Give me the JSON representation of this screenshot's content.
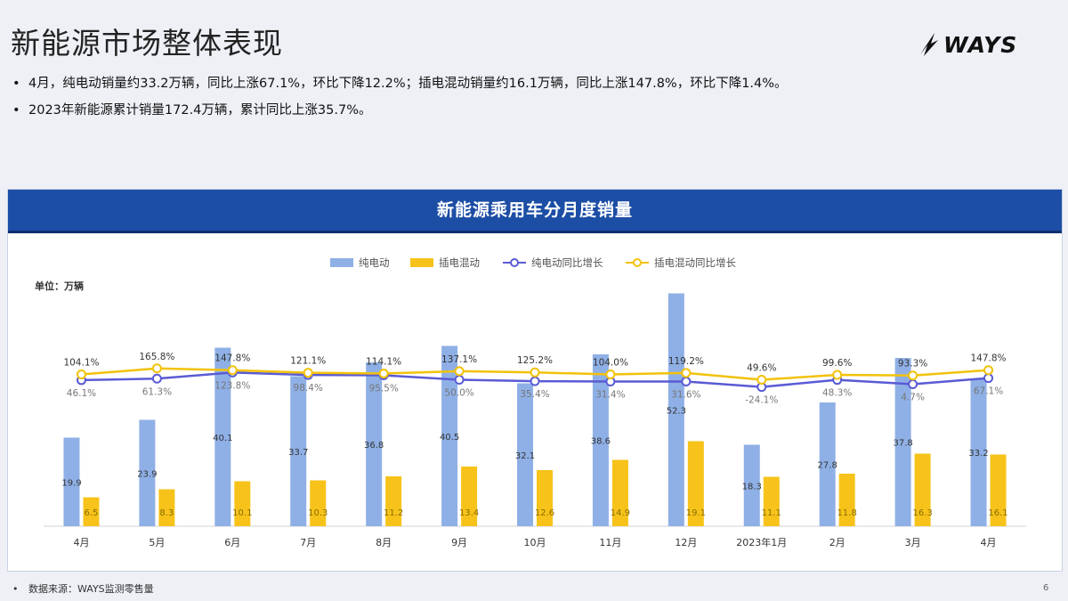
{
  "page": {
    "title": "新能源市场整体表现",
    "logo_text": "WAYS",
    "bullets": [
      "4月，纯电动销量约33.2万辆，同比上涨67.1%，环比下降12.2%；插电混动销量约16.1万辆，同比上涨147.8%，环比下降1.4%。",
      "2023年新能源累计销量172.4万辆，累计同比上涨35.7%。"
    ],
    "footer": "数据来源：WAYS监测零售量",
    "page_number": "6"
  },
  "colors": {
    "header_bg": "#1c4ea5",
    "bev_bar": "#8fb0e6",
    "phev_bar": "#f7c31a",
    "bev_line": "#5a5bd4",
    "phev_line": "#f2c20a"
  },
  "chart_data": {
    "type": "bar",
    "title": "新能源乘用车分月度销量",
    "unit_label": "单位：万辆",
    "legend_position": "top-center",
    "categories": [
      "4月",
      "5月",
      "6月",
      "7月",
      "8月",
      "9月",
      "10月",
      "11月",
      "12月",
      "2023年1月",
      "2月",
      "3月",
      "4月"
    ],
    "series": [
      {
        "name": "纯电动",
        "kind": "bar",
        "values": [
          19.9,
          23.9,
          40.1,
          33.7,
          36.8,
          40.5,
          32.1,
          38.6,
          52.3,
          18.3,
          27.8,
          37.8,
          33.2
        ]
      },
      {
        "name": "插电混动",
        "kind": "bar",
        "values": [
          6.5,
          8.3,
          10.1,
          10.3,
          11.2,
          13.4,
          12.6,
          14.9,
          19.1,
          11.1,
          11.8,
          16.3,
          16.1
        ]
      },
      {
        "name": "纯电动同比增长",
        "kind": "line",
        "values": [
          46.1,
          61.3,
          123.8,
          98.4,
          95.5,
          50.0,
          35.4,
          31.4,
          31.6,
          -24.1,
          48.3,
          4.7,
          67.1
        ],
        "labels": [
          "46.1%",
          "61.3%",
          "123.8%",
          "98.4%",
          "95.5%",
          "50.0%",
          "35.4%",
          "31.4%",
          "31.6%",
          "-24.1%",
          "48.3%",
          "4.7%",
          "67.1%"
        ]
      },
      {
        "name": "插电混动同比增长",
        "kind": "line",
        "values": [
          104.1,
          165.8,
          147.8,
          121.1,
          114.1,
          137.1,
          125.2,
          104.0,
          119.2,
          49.6,
          99.6,
          93.3,
          147.8
        ],
        "labels": [
          "104.1%",
          "165.8%",
          "147.8%",
          "121.1%",
          "114.1%",
          "137.1%",
          "125.2%",
          "104.0%",
          "119.2%",
          "49.6%",
          "99.6%",
          "93.3%",
          "147.8%"
        ]
      }
    ],
    "grid": false
  }
}
